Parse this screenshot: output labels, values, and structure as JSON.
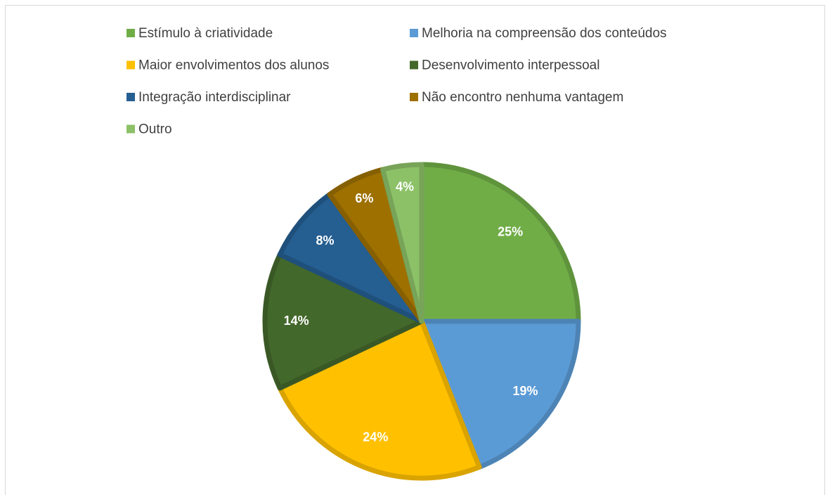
{
  "chart_data": {
    "type": "pie",
    "categories": [
      "Estímulo à criatividade",
      "Melhoria na compreensão dos conteúdos",
      "Maior envolvimentos dos alunos",
      "Desenvolvimento interpessoal",
      "Integração interdisciplinar",
      "Não encontro nenhuma vantagem",
      "Outro"
    ],
    "values": [
      25,
      19,
      24,
      14,
      8,
      6,
      4
    ],
    "value_labels": [
      "25%",
      "19%",
      "24%",
      "14%",
      "8%",
      "6%",
      "4%"
    ],
    "colors": [
      "#70ad47",
      "#5b9bd5",
      "#ffc000",
      "#43682b",
      "#255e91",
      "#9e7000",
      "#8cc168"
    ],
    "legend": "top"
  }
}
